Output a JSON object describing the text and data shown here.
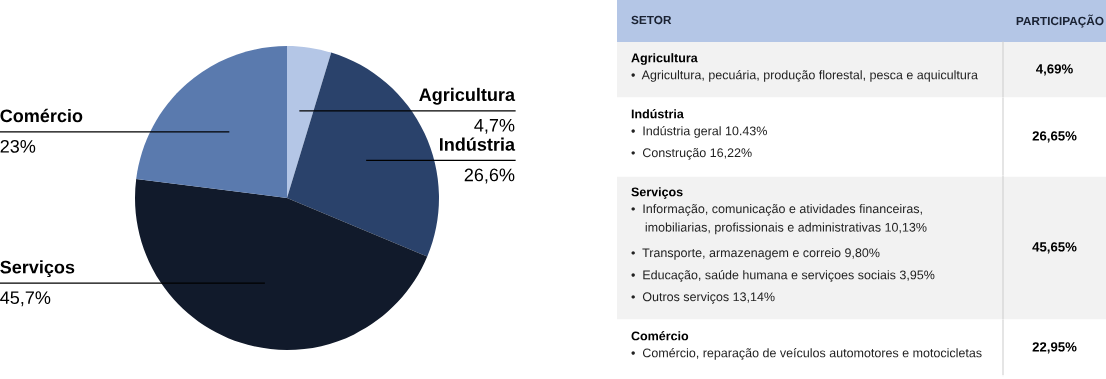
{
  "chart_data": [
    {
      "type": "pie",
      "categories": [
        "Agricultura",
        "Indústria",
        "Serviços",
        "Comércio"
      ],
      "values": [
        4.7,
        26.6,
        45.7,
        23
      ],
      "value_labels": [
        "4,7%",
        "26,6%",
        "45,7%",
        "23%"
      ],
      "colors": [
        "#b4c6e6",
        "#2a426b",
        "#111a2b",
        "#5a7aae"
      ]
    },
    {
      "type": "other",
      "xlabel": "SETOR",
      "ylabel": "PARTICIPAÇÃO",
      "categories": [
        "Agricultura",
        "Indústria",
        "Serviços",
        "Comércio"
      ],
      "value_labels": [
        "4,69%",
        "26,65%",
        "45,65%",
        "22,95%"
      ],
      "annotations": [
        {
          "text": "•  Agricultura, pecuária, produção florestal, pesca e aquicultura",
          "x": "Agricultura"
        },
        {
          "text": "•  Indústria geral 10.43%",
          "x": "Indústria"
        },
        {
          "text": "•  Construção 16,22%",
          "x": "Indústria"
        },
        {
          "text": "•  Informação, comunicação e atividades financeiras,\n    imobiliarias, profissionais e administrativas 10,13%",
          "x": "Serviços"
        },
        {
          "text": "•  Transporte, armazenagem e correio 9,80%",
          "x": "Serviços"
        },
        {
          "text": "•  Educação, saúde humana e serviçoes sociais 3,95%",
          "x": "Serviços"
        },
        {
          "text": "•  Outros serviços 13,14%",
          "x": "Serviços"
        },
        {
          "text": "•  Comércio, reparação de veículos automotores e motocicletas",
          "x": "Comércio"
        }
      ]
    }
  ]
}
